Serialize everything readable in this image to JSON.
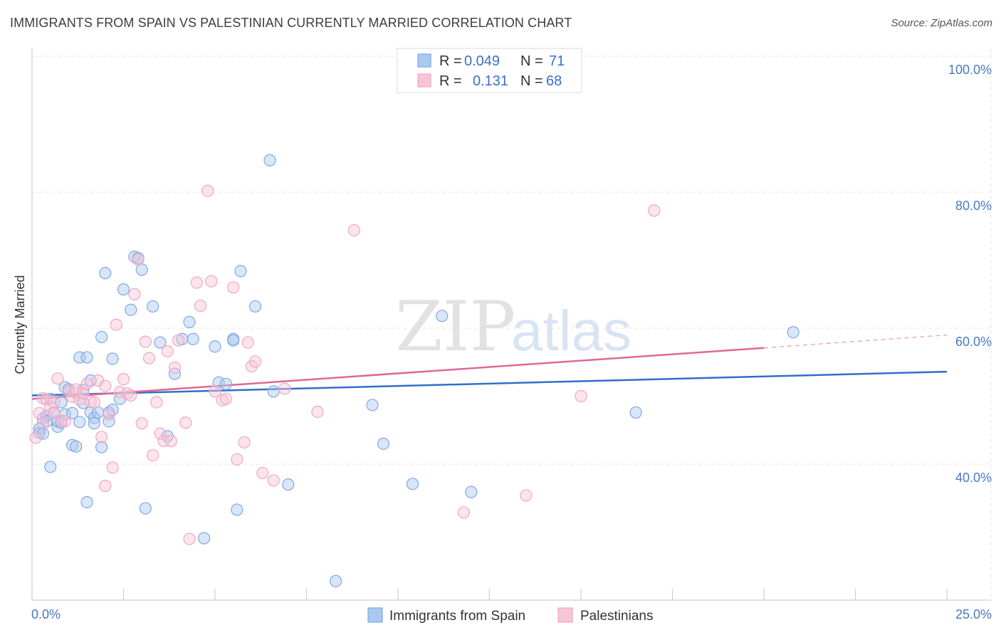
{
  "title": "IMMIGRANTS FROM SPAIN VS PALESTINIAN CURRENTLY MARRIED CORRELATION CHART",
  "source": "Source: ZipAtlas.com",
  "watermark": {
    "zip": "ZIP",
    "atlas": "atlas"
  },
  "chart_data": {
    "type": "scatter",
    "ylabel": "Currently Married",
    "xlim": [
      0,
      25
    ],
    "ylim": [
      22,
      102
    ],
    "x_ticks": [
      {
        "value": 0,
        "label": "0.0%"
      },
      {
        "value": 25,
        "label": "25.0%"
      }
    ],
    "y_ticks": [
      {
        "value": 40,
        "label": "40.0%"
      },
      {
        "value": 60,
        "label": "60.0%"
      },
      {
        "value": 80,
        "label": "80.0%"
      },
      {
        "value": 100,
        "label": "100.0%"
      }
    ],
    "grid": true,
    "legend": {
      "placement": "top-center",
      "rows": [
        {
          "r_label": "R =",
          "r_value": "0.049",
          "n_label": "N =",
          "n_value": "71"
        },
        {
          "r_label": "R =",
          "r_value": "0.131",
          "n_label": "N =",
          "n_value": "68"
        }
      ]
    },
    "series": [
      {
        "name": "Immigrants from Spain",
        "color": "#7fa8e4",
        "fill": "#aac8f0",
        "line_color": "#2f6fcc",
        "trend": {
          "x": [
            0,
            25
          ],
          "y": [
            50.1,
            53.6
          ]
        },
        "points": [
          [
            0.2,
            45.2
          ],
          [
            0.2,
            44.6
          ],
          [
            0.3,
            46.7
          ],
          [
            0.4,
            47.1
          ],
          [
            0.4,
            46.3
          ],
          [
            0.5,
            39.6
          ],
          [
            0.5,
            49.6
          ],
          [
            0.6,
            47.6
          ],
          [
            0.7,
            45.5
          ],
          [
            0.7,
            46.3
          ],
          [
            0.8,
            49.1
          ],
          [
            0.8,
            46.1
          ],
          [
            0.9,
            47.3
          ],
          [
            0.9,
            51.3
          ],
          [
            1.0,
            51.0
          ],
          [
            1.1,
            42.8
          ],
          [
            1.2,
            42.6
          ],
          [
            1.3,
            55.7
          ],
          [
            1.4,
            49.0
          ],
          [
            1.4,
            50.9
          ],
          [
            1.5,
            55.7
          ],
          [
            1.5,
            34.4
          ],
          [
            1.6,
            52.3
          ],
          [
            1.6,
            47.6
          ],
          [
            1.7,
            46.8
          ],
          [
            1.7,
            46.0
          ],
          [
            1.8,
            47.6
          ],
          [
            1.9,
            58.7
          ],
          [
            1.9,
            42.5
          ],
          [
            2.0,
            68.1
          ],
          [
            2.1,
            46.3
          ],
          [
            2.1,
            47.6
          ],
          [
            2.2,
            48.0
          ],
          [
            2.2,
            55.5
          ],
          [
            2.4,
            49.6
          ],
          [
            2.5,
            65.7
          ],
          [
            2.7,
            62.7
          ],
          [
            2.8,
            70.5
          ],
          [
            2.9,
            70.3
          ],
          [
            3.0,
            68.6
          ],
          [
            3.1,
            33.5
          ],
          [
            3.3,
            63.2
          ],
          [
            3.5,
            57.9
          ],
          [
            3.7,
            44.1
          ],
          [
            3.9,
            53.3
          ],
          [
            4.1,
            58.4
          ],
          [
            4.3,
            60.9
          ],
          [
            4.4,
            58.4
          ],
          [
            4.7,
            29.1
          ],
          [
            5.0,
            57.3
          ],
          [
            5.1,
            52.0
          ],
          [
            5.3,
            51.8
          ],
          [
            5.5,
            58.4
          ],
          [
            5.5,
            58.2
          ],
          [
            5.6,
            33.3
          ],
          [
            5.7,
            68.4
          ],
          [
            6.1,
            63.2
          ],
          [
            6.5,
            84.7
          ],
          [
            6.6,
            50.7
          ],
          [
            7.0,
            37.0
          ],
          [
            8.3,
            22.8
          ],
          [
            9.3,
            48.7
          ],
          [
            9.6,
            43.0
          ],
          [
            10.4,
            37.1
          ],
          [
            11.2,
            61.8
          ],
          [
            12.0,
            35.9
          ],
          [
            16.5,
            47.6
          ],
          [
            20.8,
            59.4
          ],
          [
            1.1,
            47.5
          ],
          [
            1.3,
            46.2
          ],
          [
            0.3,
            44.5
          ]
        ]
      },
      {
        "name": "Palestinians",
        "color": "#f0a6c0",
        "fill": "#f6c5d6",
        "line_color": "#e06896",
        "trend": {
          "x": [
            0,
            20
          ],
          "y": [
            49.6,
            57.1
          ]
        },
        "trend_dashed": {
          "x": [
            20,
            25
          ],
          "y": [
            57.1,
            59.0
          ]
        },
        "points": [
          [
            0.1,
            43.9
          ],
          [
            0.2,
            47.5
          ],
          [
            0.3,
            49.7
          ],
          [
            0.4,
            49.5
          ],
          [
            0.5,
            48.4
          ],
          [
            0.6,
            47.5
          ],
          [
            0.7,
            52.6
          ],
          [
            0.8,
            46.4
          ],
          [
            0.9,
            46.3
          ],
          [
            1.0,
            50.7
          ],
          [
            1.1,
            49.9
          ],
          [
            1.2,
            50.5
          ],
          [
            1.3,
            49.5
          ],
          [
            1.4,
            50.4
          ],
          [
            1.5,
            51.8
          ],
          [
            1.6,
            49.2
          ],
          [
            1.7,
            49.1
          ],
          [
            1.8,
            52.3
          ],
          [
            1.9,
            44.0
          ],
          [
            2.0,
            51.5
          ],
          [
            2.0,
            36.8
          ],
          [
            2.1,
            47.3
          ],
          [
            2.2,
            39.5
          ],
          [
            2.3,
            60.5
          ],
          [
            2.4,
            50.6
          ],
          [
            2.5,
            52.5
          ],
          [
            2.6,
            50.4
          ],
          [
            2.7,
            50.1
          ],
          [
            2.8,
            65.0
          ],
          [
            2.9,
            70.1
          ],
          [
            3.0,
            46.0
          ],
          [
            3.1,
            58.0
          ],
          [
            3.2,
            55.6
          ],
          [
            3.3,
            41.3
          ],
          [
            3.4,
            49.1
          ],
          [
            3.5,
            44.5
          ],
          [
            3.6,
            43.4
          ],
          [
            3.7,
            56.6
          ],
          [
            3.8,
            43.4
          ],
          [
            3.9,
            54.2
          ],
          [
            4.0,
            58.2
          ],
          [
            4.2,
            46.1
          ],
          [
            4.3,
            29.0
          ],
          [
            4.5,
            66.7
          ],
          [
            4.6,
            63.3
          ],
          [
            4.8,
            80.2
          ],
          [
            4.9,
            66.9
          ],
          [
            5.0,
            50.7
          ],
          [
            5.2,
            49.4
          ],
          [
            5.3,
            49.6
          ],
          [
            5.5,
            66.0
          ],
          [
            5.6,
            40.7
          ],
          [
            5.8,
            43.2
          ],
          [
            5.9,
            57.9
          ],
          [
            6.0,
            54.4
          ],
          [
            6.1,
            55.1
          ],
          [
            6.3,
            38.7
          ],
          [
            6.6,
            37.6
          ],
          [
            6.9,
            51.1
          ],
          [
            7.8,
            47.7
          ],
          [
            8.8,
            74.4
          ],
          [
            11.8,
            32.9
          ],
          [
            13.5,
            35.4
          ],
          [
            15.0,
            50.0
          ],
          [
            17.0,
            77.3
          ],
          [
            0.3,
            46.0
          ],
          [
            0.6,
            49.1
          ],
          [
            1.2,
            51.0
          ]
        ]
      }
    ]
  }
}
